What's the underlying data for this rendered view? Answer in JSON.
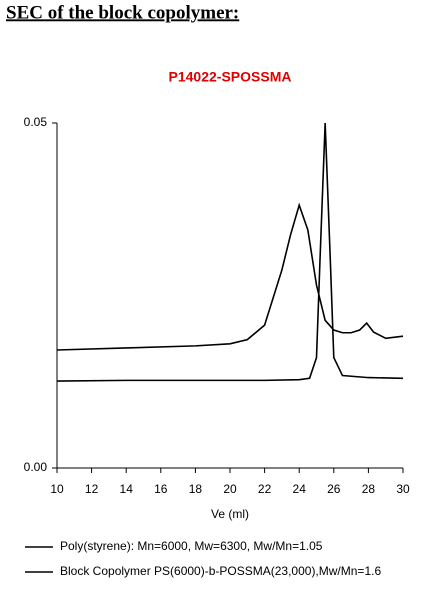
{
  "heading": "SEC of the block copolymer:",
  "chart_data": {
    "type": "line",
    "title": "P14022-SPOSSMA",
    "xlabel": "Ve (ml)",
    "xlim": [
      10,
      30
    ],
    "xticks": [
      10,
      12,
      14,
      16,
      18,
      20,
      22,
      24,
      26,
      28,
      30
    ],
    "ylim": [
      0,
      0.05
    ],
    "yticks": [
      {
        "value": 0,
        "label": "0.00"
      },
      {
        "value": 0.05,
        "label": "0.05"
      }
    ],
    "series": [
      {
        "name": "Poly(styrene): Mn=6000, Mw=6300, Mw/Mn=1.05",
        "color": "#000000",
        "x": [
          10,
          14,
          18,
          22,
          24,
          24.6,
          25,
          25.2,
          25.5,
          25.8,
          26,
          26.5,
          28,
          30
        ],
        "values": [
          0.0126,
          0.0127,
          0.0127,
          0.0127,
          0.0128,
          0.013,
          0.016,
          0.03,
          0.05,
          0.03,
          0.016,
          0.0134,
          0.0131,
          0.013
        ]
      },
      {
        "name": "Block Copolymer PS(6000)-b-POSSMA(23,000),Mw/Mn=1.6",
        "color": "#000000",
        "x": [
          10,
          14,
          18,
          20,
          21,
          22,
          23,
          23.5,
          24,
          24.5,
          25,
          25.5,
          26,
          26.5,
          27,
          27.5,
          27.9,
          28.3,
          29,
          30
        ],
        "values": [
          0.0171,
          0.0174,
          0.0177,
          0.018,
          0.0186,
          0.0207,
          0.0287,
          0.0338,
          0.0381,
          0.0345,
          0.0265,
          0.0214,
          0.02,
          0.0196,
          0.0196,
          0.02,
          0.021,
          0.0197,
          0.0188,
          0.0191
        ]
      }
    ]
  }
}
